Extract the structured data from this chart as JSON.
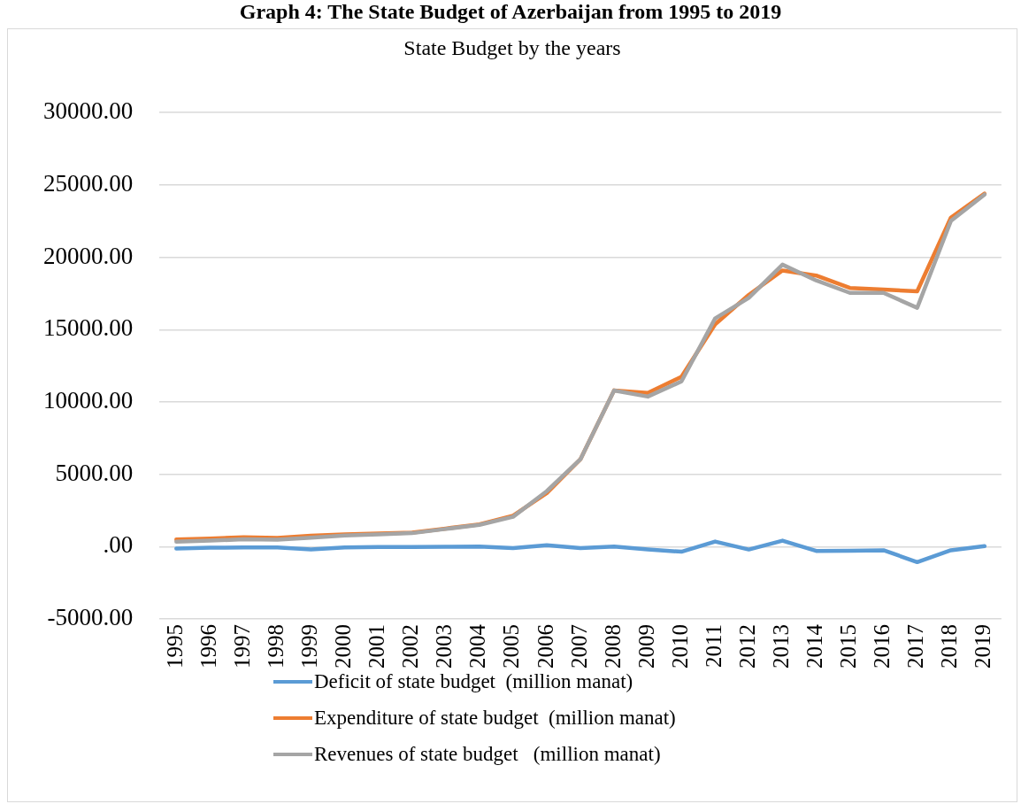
{
  "chart_data": {
    "type": "line",
    "title": "Graph 4: The State Budget of Azerbaijan from 1995 to 2019",
    "subtitle": "State Budget by the years",
    "categories": [
      "1995",
      "1996",
      "1997",
      "1998",
      "1999",
      "2000",
      "2001",
      "2002",
      "2003",
      "2004",
      "2005",
      "2006",
      "2007",
      "2008",
      "2009",
      "2010",
      "2011",
      "2012",
      "2013",
      "2014",
      "2015",
      "2016",
      "2017",
      "2018",
      "2019"
    ],
    "series": [
      {
        "name": "Deficit of state budget  (million manat)",
        "color": "#5b9bd5",
        "values": [
          -130,
          -80,
          -60,
          -50,
          -190,
          -50,
          -30,
          -30,
          -10,
          10,
          -110,
          90,
          -100,
          0,
          -200,
          -350,
          350,
          -200,
          410,
          -300,
          -280,
          -250,
          -1070,
          -250,
          30
        ]
      },
      {
        "name": "Expenditure of state budget  (million manat)",
        "color": "#ed7d31",
        "values": [
          490,
          550,
          650,
          600,
          760,
          850,
          900,
          970,
          1250,
          1540,
          2140,
          3700,
          6040,
          10800,
          10620,
          11740,
          15370,
          17400,
          19090,
          18740,
          17880,
          17770,
          17650,
          22740,
          24400
        ]
      },
      {
        "name": "Revenues of state budget   (million manat)",
        "color": "#a5a5a5",
        "values": [
          340,
          410,
          510,
          480,
          620,
          770,
          850,
          930,
          1220,
          1500,
          2060,
          3830,
          6040,
          10790,
          10370,
          11420,
          15770,
          17200,
          19490,
          18400,
          17540,
          17540,
          16510,
          22510,
          24340
        ]
      }
    ],
    "ylim": [
      -5000,
      30000
    ],
    "yticks": [
      {
        "value": -5000,
        "label": "-5000.00"
      },
      {
        "value": 0,
        "label": ".00"
      },
      {
        "value": 5000,
        "label": "5000.00"
      },
      {
        "value": 10000,
        "label": "10000.00"
      },
      {
        "value": 15000,
        "label": "15000.00"
      },
      {
        "value": 20000,
        "label": "20000.00"
      },
      {
        "value": 25000,
        "label": "25000.00"
      },
      {
        "value": 30000,
        "label": "30000.00"
      }
    ],
    "grid": "y",
    "legend": "bottom",
    "marker": "none",
    "line_style": "solid"
  }
}
